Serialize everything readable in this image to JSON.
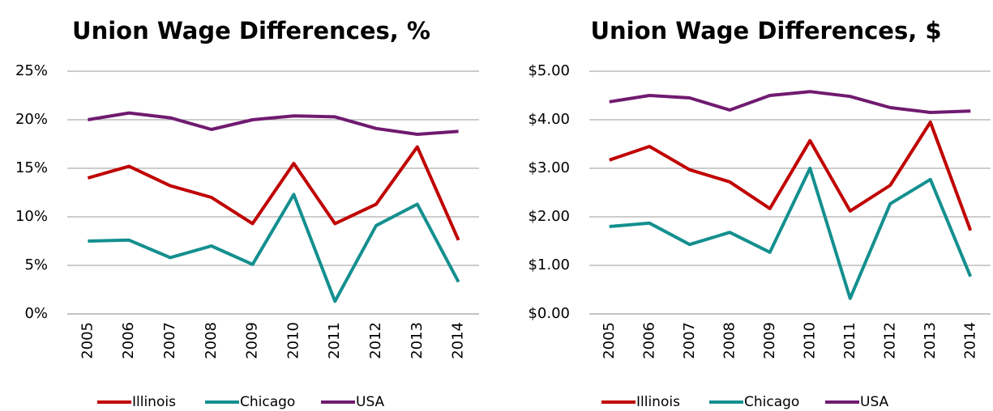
{
  "chart_data": [
    {
      "type": "line",
      "title": "Union Wage Differences, %",
      "categories": [
        "2005",
        "2006",
        "2007",
        "2008",
        "2009",
        "2010",
        "2011",
        "2012",
        "2013",
        "2014"
      ],
      "series": [
        {
          "name": "Illinois",
          "color": "#c00000",
          "values": [
            14.0,
            15.2,
            13.2,
            12.0,
            9.3,
            15.5,
            9.3,
            11.3,
            17.2,
            7.6
          ]
        },
        {
          "name": "Chicago",
          "color": "#148f8f",
          "values": [
            7.5,
            7.6,
            5.8,
            7.0,
            5.1,
            12.3,
            1.3,
            9.1,
            11.3,
            3.3
          ]
        },
        {
          "name": "USA",
          "color": "#701a70",
          "values": [
            20.0,
            20.7,
            20.2,
            19.0,
            20.0,
            20.4,
            20.3,
            19.1,
            18.5,
            18.8
          ]
        }
      ],
      "ylim": [
        0,
        25
      ],
      "yticks": [
        {
          "value": 0,
          "label": "0%"
        },
        {
          "value": 5,
          "label": "5%"
        },
        {
          "value": 10,
          "label": "10%"
        },
        {
          "value": 15,
          "label": "15%"
        },
        {
          "value": 20,
          "label": "20%"
        },
        {
          "value": 25,
          "label": "25%"
        }
      ],
      "grid": true,
      "legend": "bottom"
    },
    {
      "type": "line",
      "title": "Union Wage Differences, $",
      "categories": [
        "2005",
        "2006",
        "2007",
        "2008",
        "2009",
        "2010",
        "2011",
        "2012",
        "2013",
        "2014"
      ],
      "series": [
        {
          "name": "Illinois",
          "color": "#c00000",
          "values": [
            3.17,
            3.45,
            2.97,
            2.72,
            2.17,
            3.57,
            2.12,
            2.65,
            3.95,
            1.72
          ]
        },
        {
          "name": "Chicago",
          "color": "#148f8f",
          "values": [
            1.8,
            1.87,
            1.43,
            1.68,
            1.27,
            3.0,
            0.32,
            2.27,
            2.77,
            0.77
          ]
        },
        {
          "name": "USA",
          "color": "#701a70",
          "values": [
            4.37,
            4.5,
            4.45,
            4.2,
            4.5,
            4.58,
            4.48,
            4.25,
            4.15,
            4.18
          ]
        }
      ],
      "ylim": [
        0,
        5
      ],
      "yticks": [
        {
          "value": 0,
          "label": "$0.00"
        },
        {
          "value": 1,
          "label": "$1.00"
        },
        {
          "value": 2,
          "label": "$2.00"
        },
        {
          "value": 3,
          "label": "$3.00"
        },
        {
          "value": 4,
          "label": "$4.00"
        },
        {
          "value": 5,
          "label": "$5.00"
        }
      ],
      "grid": true,
      "legend": "bottom"
    }
  ]
}
